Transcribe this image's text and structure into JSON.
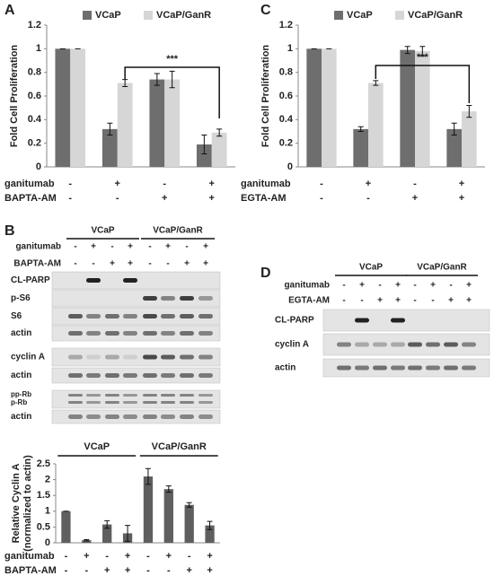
{
  "chart_data": [
    {
      "type": "bar",
      "panel": "A",
      "y_label": [
        "Fold Cell Proliferation"
      ],
      "categories": [
        null,
        null,
        null,
        null
      ],
      "series": [
        {
          "name": "VCaP",
          "color": "#6e6e6e",
          "values": [
            1,
            0.32,
            0.74,
            0.19
          ],
          "errors": [
            0,
            0.05,
            0.05,
            0.08
          ]
        },
        {
          "name": "VCaP/GanR",
          "color": "#d6d6d6",
          "values": [
            1,
            0.71,
            0.74,
            0.29
          ],
          "errors": [
            0,
            0.03,
            0.07,
            0.03
          ]
        }
      ],
      "ylim": [
        0,
        1.2
      ],
      "yticks": [
        0,
        0.2,
        0.4,
        0.6,
        0.8,
        1,
        1.2
      ],
      "annotation": "***",
      "treatments": [
        {
          "name": "ganitumab",
          "signs": [
            "-",
            "+",
            "-",
            "+"
          ]
        },
        {
          "name": "BAPTA-AM",
          "signs": [
            "-",
            "-",
            "+",
            "+"
          ]
        }
      ]
    },
    {
      "type": "bar",
      "panel": "C",
      "y_label": [
        "Fold Cell Proliferation"
      ],
      "categories": [
        null,
        null,
        null,
        null
      ],
      "series": [
        {
          "name": "VCaP",
          "color": "#6e6e6e",
          "values": [
            1,
            0.32,
            0.99,
            0.32
          ],
          "errors": [
            0,
            0.02,
            0.03,
            0.05
          ]
        },
        {
          "name": "VCaP/GanR",
          "color": "#d6d6d6",
          "values": [
            1,
            0.71,
            0.98,
            0.47
          ],
          "errors": [
            0,
            0.02,
            0.04,
            0.05
          ]
        }
      ],
      "ylim": [
        0,
        1.2
      ],
      "yticks": [
        0,
        0.2,
        0.4,
        0.6,
        0.8,
        1,
        1.2
      ],
      "annotation": "***",
      "treatments": [
        {
          "name": "ganitumab",
          "signs": [
            "-",
            "+",
            "-",
            "+"
          ]
        },
        {
          "name": "EGTA-AM",
          "signs": [
            "-",
            "-",
            "+",
            "+"
          ]
        }
      ]
    },
    {
      "type": "bar",
      "y_label": [
        "Relative Cyclin A",
        "(normalized to actin)"
      ],
      "groups": [
        "VCaP",
        "VCaP/GanR"
      ],
      "categories": [
        null,
        null,
        null,
        null,
        null,
        null,
        null,
        null
      ],
      "series": [
        {
          "color": "#5f5f5f",
          "values": [
            1,
            0.08,
            0.58,
            0.3,
            2.1,
            1.7,
            1.2,
            0.55
          ],
          "errors": [
            0,
            0.02,
            0.12,
            0.25,
            0.25,
            0.1,
            0.07,
            0.13
          ]
        }
      ],
      "ylim": [
        0,
        2.5
      ],
      "yticks": [
        0,
        0.5,
        1,
        1.5,
        2,
        2.5
      ],
      "treatments": [
        {
          "name": "ganitumab",
          "signs": [
            "-",
            "+",
            "-",
            "+",
            "-",
            "+",
            "-",
            "+"
          ]
        },
        {
          "name": "BAPTA-AM",
          "signs": [
            "-",
            "-",
            "+",
            "+",
            "-",
            "-",
            "+",
            "+"
          ]
        }
      ]
    }
  ],
  "blots": [
    {
      "panel": "B",
      "groups": [
        "VCaP",
        "VCaP/GanR"
      ],
      "treatments": [
        {
          "name": "ganitumab",
          "signs": [
            "-",
            "+",
            "-",
            "+",
            "-",
            "+",
            "-",
            "+"
          ]
        },
        {
          "name": "BAPTA-AM",
          "signs": [
            "-",
            "-",
            "+",
            "+",
            "-",
            "-",
            "+",
            "+"
          ]
        }
      ],
      "rows": [
        "CL-PARP",
        "p-S6",
        "S6",
        "actin",
        "cyclin A",
        "actin",
        "pp-Rb",
        "p-Rb",
        "actin"
      ]
    },
    {
      "panel": "D",
      "groups": [
        "VCaP",
        "VCaP/GanR"
      ],
      "treatments": [
        {
          "name": "ganitumab",
          "signs": [
            "-",
            "+",
            "-",
            "+",
            "-",
            "+",
            "-",
            "+"
          ]
        },
        {
          "name": "EGTA-AM",
          "signs": [
            "-",
            "-",
            "+",
            "+",
            "-",
            "-",
            "+",
            "+"
          ]
        }
      ],
      "rows": [
        "CL-PARP",
        "cyclin A",
        "actin"
      ]
    }
  ]
}
